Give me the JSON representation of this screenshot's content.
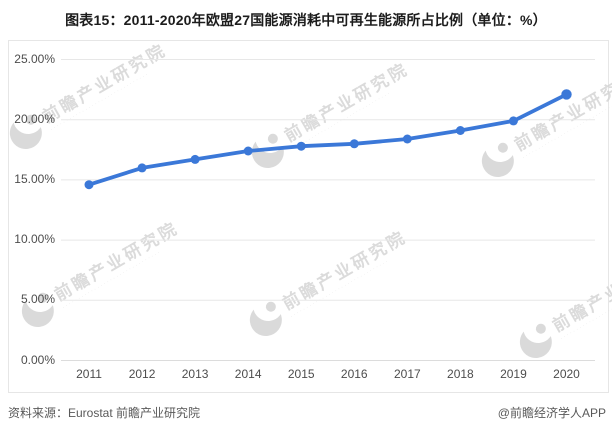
{
  "page": {
    "title": "图表15：2011-2020年欧盟27国能源消耗中可再生能源所占比例（单位：%）"
  },
  "chart_data": {
    "type": "line",
    "title": "2011-2020年欧盟27国能源消耗中可再生能源所占比例（单位：%）",
    "categories": [
      "2011",
      "2012",
      "2013",
      "2014",
      "2015",
      "2016",
      "2017",
      "2018",
      "2019",
      "2020"
    ],
    "series": [
      {
        "name": "欧盟27国能源消耗中可再生能源所占比例",
        "values": [
          14.6,
          16.0,
          16.7,
          17.4,
          17.8,
          18.0,
          18.4,
          19.1,
          19.9,
          22.1
        ]
      }
    ],
    "xlabel": "",
    "ylabel": "",
    "ylim": [
      0,
      25
    ],
    "y_tick_labels": [
      "25.00%",
      "20.00%",
      "15.00%",
      "10.00%",
      "5.00%",
      "0.00%"
    ],
    "grid": "on",
    "legend": "none",
    "line_color": "#3b78d8",
    "gridline_color": "#e7e7e7",
    "axisline_color": "#dcdcdc"
  },
  "watermark": {
    "text": "前瞻产业研究院",
    "subtext": "·······························"
  },
  "footer": {
    "source": "资料来源：Eurostat 前瞻产业研究院",
    "credit": "@前瞻经济学人APP"
  }
}
